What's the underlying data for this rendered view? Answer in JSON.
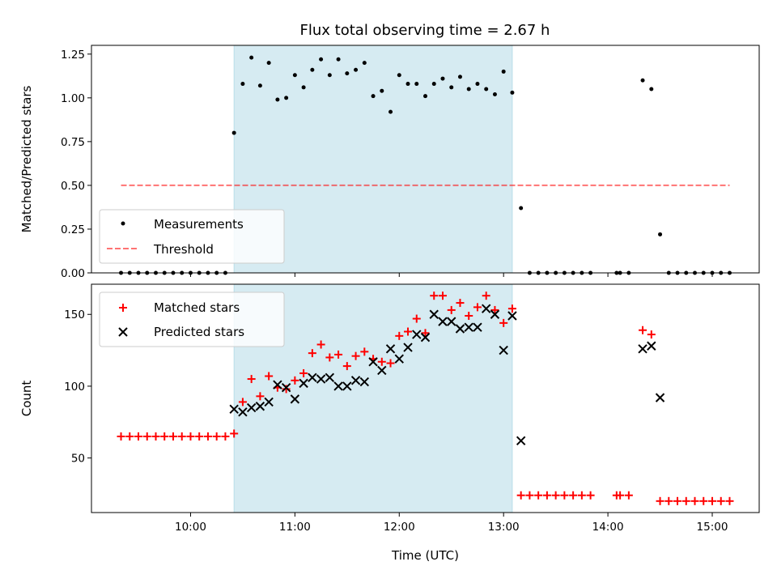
{
  "chart_data": [
    {
      "type": "scatter",
      "title": "Flux total observing time = 2.67 h",
      "ylabel": "Matched/Predicted stars",
      "xlabel": "",
      "xlim": [
        "09:03",
        "15:27"
      ],
      "ylim": [
        0,
        1.3
      ],
      "yticks": [
        0.0,
        0.25,
        0.5,
        0.75,
        1.0,
        1.25
      ],
      "ytick_labels": [
        "0.00",
        "0.25",
        "0.50",
        "0.75",
        "1.00",
        "1.25"
      ],
      "xticks": [
        "10:00",
        "11:00",
        "12:00",
        "13:00",
        "14:00",
        "15:00"
      ],
      "grid": false,
      "legend": "lower-left",
      "shaded_region": {
        "x0": "10:25",
        "x1": "13:05",
        "color": "#add8e6"
      },
      "threshold": {
        "name": "Threshold",
        "value": 0.5,
        "x0": "09:20",
        "x1": "15:10",
        "color": "#ff0000",
        "style": "dashed"
      },
      "series": [
        {
          "name": "Measurements",
          "marker": "dot",
          "color": "#000000",
          "points": [
            [
              "09:20",
              0
            ],
            [
              "09:25",
              0
            ],
            [
              "09:30",
              0
            ],
            [
              "09:35",
              0
            ],
            [
              "09:40",
              0
            ],
            [
              "09:45",
              0
            ],
            [
              "09:50",
              0
            ],
            [
              "09:55",
              0
            ],
            [
              "10:00",
              0
            ],
            [
              "10:05",
              0
            ],
            [
              "10:10",
              0
            ],
            [
              "10:15",
              0
            ],
            [
              "10:20",
              0
            ],
            [
              "10:25",
              0.8
            ],
            [
              "10:30",
              1.08
            ],
            [
              "10:35",
              1.23
            ],
            [
              "10:40",
              1.07
            ],
            [
              "10:45",
              1.2
            ],
            [
              "10:50",
              0.99
            ],
            [
              "10:55",
              1.0
            ],
            [
              "11:00",
              1.13
            ],
            [
              "11:05",
              1.06
            ],
            [
              "11:10",
              1.16
            ],
            [
              "11:15",
              1.22
            ],
            [
              "11:20",
              1.13
            ],
            [
              "11:25",
              1.22
            ],
            [
              "11:30",
              1.14
            ],
            [
              "11:35",
              1.16
            ],
            [
              "11:40",
              1.2
            ],
            [
              "11:45",
              1.01
            ],
            [
              "11:50",
              1.04
            ],
            [
              "11:55",
              0.92
            ],
            [
              "12:00",
              1.13
            ],
            [
              "12:05",
              1.08
            ],
            [
              "12:10",
              1.08
            ],
            [
              "12:15",
              1.01
            ],
            [
              "12:20",
              1.08
            ],
            [
              "12:25",
              1.11
            ],
            [
              "12:30",
              1.06
            ],
            [
              "12:35",
              1.12
            ],
            [
              "12:40",
              1.05
            ],
            [
              "12:45",
              1.08
            ],
            [
              "12:50",
              1.05
            ],
            [
              "12:55",
              1.02
            ],
            [
              "13:00",
              1.15
            ],
            [
              "13:05",
              1.03
            ],
            [
              "13:10",
              0.37
            ],
            [
              "13:15",
              0
            ],
            [
              "13:20",
              0
            ],
            [
              "13:25",
              0
            ],
            [
              "13:30",
              0
            ],
            [
              "13:35",
              0
            ],
            [
              "13:40",
              0
            ],
            [
              "13:45",
              0
            ],
            [
              "13:50",
              0
            ],
            [
              "14:05",
              0
            ],
            [
              "14:07",
              0
            ],
            [
              "14:12",
              0
            ],
            [
              "14:20",
              1.1
            ],
            [
              "14:25",
              1.05
            ],
            [
              "14:30",
              0.22
            ],
            [
              "14:35",
              0
            ],
            [
              "14:40",
              0
            ],
            [
              "14:45",
              0
            ],
            [
              "14:50",
              0
            ],
            [
              "14:55",
              0
            ],
            [
              "15:00",
              0
            ],
            [
              "15:05",
              0
            ],
            [
              "15:10",
              0
            ]
          ]
        }
      ]
    },
    {
      "type": "scatter",
      "title": "",
      "ylabel": "Count",
      "xlabel": "Time (UTC)",
      "xlim": [
        "09:03",
        "15:27"
      ],
      "ylim": [
        12,
        171
      ],
      "yticks": [
        50,
        100,
        150
      ],
      "ytick_labels": [
        "50",
        "100",
        "150"
      ],
      "xticks": [
        "10:00",
        "11:00",
        "12:00",
        "13:00",
        "14:00",
        "15:00"
      ],
      "grid": false,
      "legend": "upper-left",
      "shaded_region": {
        "x0": "10:25",
        "x1": "13:05",
        "color": "#add8e6"
      },
      "series": [
        {
          "name": "Matched stars",
          "marker": "plus",
          "color": "#ff0000",
          "points": [
            [
              "09:20",
              65
            ],
            [
              "09:25",
              65
            ],
            [
              "09:30",
              65
            ],
            [
              "09:35",
              65
            ],
            [
              "09:40",
              65
            ],
            [
              "09:45",
              65
            ],
            [
              "09:50",
              65
            ],
            [
              "09:55",
              65
            ],
            [
              "10:00",
              65
            ],
            [
              "10:05",
              65
            ],
            [
              "10:10",
              65
            ],
            [
              "10:15",
              65
            ],
            [
              "10:20",
              65
            ],
            [
              "10:25",
              67
            ],
            [
              "10:30",
              89
            ],
            [
              "10:35",
              105
            ],
            [
              "10:40",
              93
            ],
            [
              "10:45",
              107
            ],
            [
              "10:50",
              99
            ],
            [
              "10:55",
              98
            ],
            [
              "11:00",
              104
            ],
            [
              "11:05",
              109
            ],
            [
              "11:10",
              123
            ],
            [
              "11:15",
              129
            ],
            [
              "11:20",
              120
            ],
            [
              "11:25",
              122
            ],
            [
              "11:30",
              114
            ],
            [
              "11:35",
              121
            ],
            [
              "11:40",
              124
            ],
            [
              "11:45",
              119
            ],
            [
              "11:50",
              117
            ],
            [
              "11:55",
              116
            ],
            [
              "12:00",
              135
            ],
            [
              "12:05",
              138
            ],
            [
              "12:10",
              147
            ],
            [
              "12:15",
              137
            ],
            [
              "12:20",
              163
            ],
            [
              "12:25",
              163
            ],
            [
              "12:30",
              153
            ],
            [
              "12:35",
              158
            ],
            [
              "12:40",
              149
            ],
            [
              "12:45",
              155
            ],
            [
              "12:50",
              163
            ],
            [
              "12:55",
              153
            ],
            [
              "13:00",
              144
            ],
            [
              "13:05",
              154
            ],
            [
              "13:10",
              24
            ],
            [
              "13:15",
              24
            ],
            [
              "13:20",
              24
            ],
            [
              "13:25",
              24
            ],
            [
              "13:30",
              24
            ],
            [
              "13:35",
              24
            ],
            [
              "13:40",
              24
            ],
            [
              "13:45",
              24
            ],
            [
              "13:50",
              24
            ],
            [
              "14:05",
              24
            ],
            [
              "14:07",
              24
            ],
            [
              "14:12",
              24
            ],
            [
              "14:20",
              139
            ],
            [
              "14:25",
              136
            ],
            [
              "14:30",
              20
            ],
            [
              "14:35",
              20
            ],
            [
              "14:40",
              20
            ],
            [
              "14:45",
              20
            ],
            [
              "14:50",
              20
            ],
            [
              "14:55",
              20
            ],
            [
              "15:00",
              20
            ],
            [
              "15:05",
              20
            ],
            [
              "15:10",
              20
            ]
          ]
        },
        {
          "name": "Predicted stars",
          "marker": "x",
          "color": "#000000",
          "points": [
            [
              "10:25",
              84
            ],
            [
              "10:30",
              82
            ],
            [
              "10:35",
              85
            ],
            [
              "10:40",
              86
            ],
            [
              "10:45",
              89
            ],
            [
              "10:50",
              101
            ],
            [
              "10:55",
              99
            ],
            [
              "11:00",
              91
            ],
            [
              "11:05",
              102
            ],
            [
              "11:10",
              106
            ],
            [
              "11:15",
              105
            ],
            [
              "11:20",
              106
            ],
            [
              "11:25",
              100
            ],
            [
              "11:30",
              100
            ],
            [
              "11:35",
              104
            ],
            [
              "11:40",
              103
            ],
            [
              "11:45",
              117
            ],
            [
              "11:50",
              111
            ],
            [
              "11:55",
              126
            ],
            [
              "12:00",
              119
            ],
            [
              "12:05",
              127
            ],
            [
              "12:10",
              136
            ],
            [
              "12:15",
              134
            ],
            [
              "12:20",
              150
            ],
            [
              "12:25",
              145
            ],
            [
              "12:30",
              145
            ],
            [
              "12:35",
              140
            ],
            [
              "12:40",
              141
            ],
            [
              "12:45",
              141
            ],
            [
              "12:50",
              154
            ],
            [
              "12:55",
              150
            ],
            [
              "13:00",
              125
            ],
            [
              "13:05",
              149
            ],
            [
              "13:10",
              62
            ],
            [
              "14:20",
              126
            ],
            [
              "14:25",
              128
            ],
            [
              "14:30",
              92
            ]
          ]
        }
      ]
    }
  ]
}
